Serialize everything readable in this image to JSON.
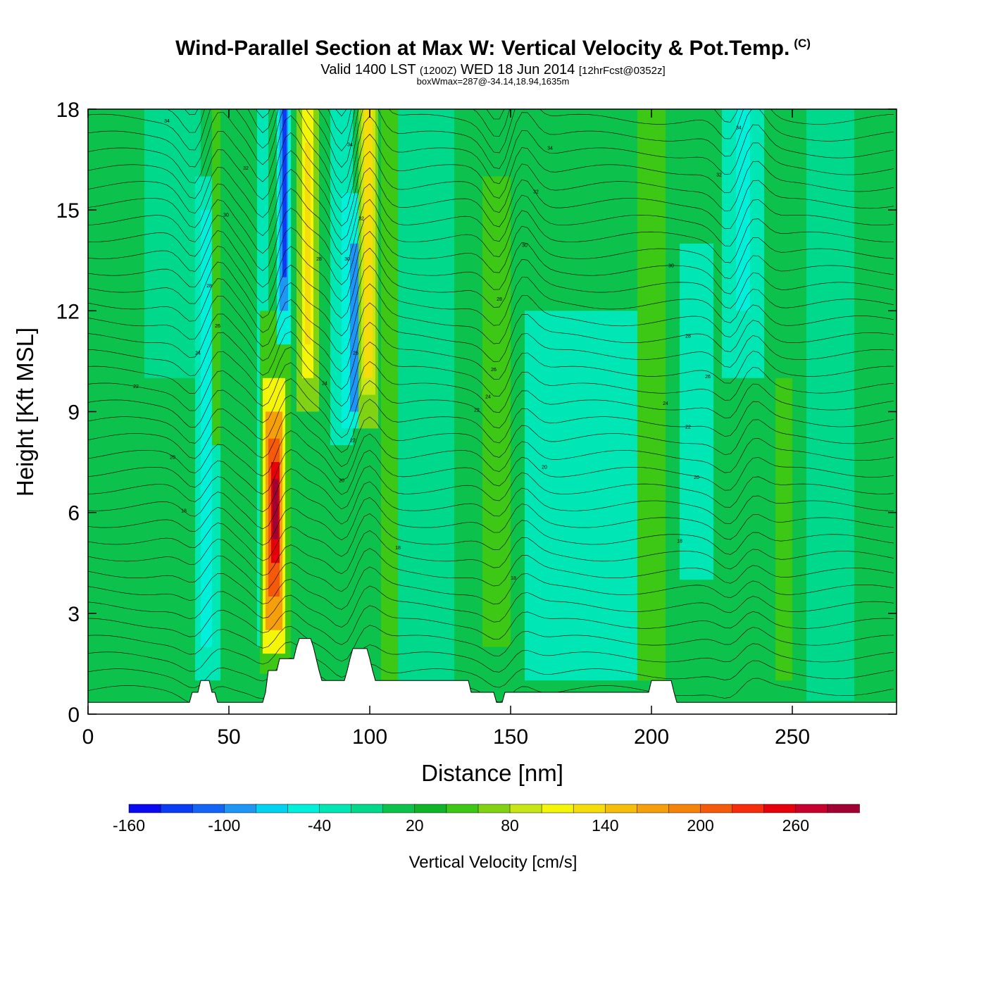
{
  "header": {
    "title": "Wind-Parallel Section at Max W: Vertical Velocity & Pot.Temp.",
    "copyright_mark": "(C)",
    "valid_prefix": "Valid 1400 LST",
    "valid_utc": "(1200Z)",
    "valid_date": "WED 18 Jun 2014",
    "forecast_info": "[12hrFcst@0352z]",
    "box_max": "boxWmax=287@-34.14,18.94,1635m"
  },
  "colors": {
    "background_green": "#0cc24c",
    "frame": "#000000",
    "terrain": "#ffffff",
    "contour": "#000000"
  },
  "chart_data": {
    "type": "heatmap",
    "title": "Wind-Parallel Section at Max W: Vertical Velocity & Pot.Temp.",
    "xlabel": "Distance [nm]",
    "ylabel": "Height [Kft MSL]",
    "xlim": [
      0,
      287
    ],
    "ylim": [
      0,
      18
    ],
    "x_ticks": [
      0,
      50,
      100,
      150,
      200,
      250
    ],
    "y_ticks": [
      0,
      3,
      6,
      9,
      12,
      15,
      18
    ],
    "colorbar": {
      "title": "Vertical Velocity [cm/s]",
      "min": -160,
      "max": 300,
      "step": 20,
      "tick_labels": [
        "-160",
        "-100",
        "-40",
        "20",
        "80",
        "140",
        "200",
        "260"
      ],
      "tick_values": [
        -160,
        -100,
        -40,
        20,
        80,
        140,
        200,
        260
      ],
      "colors": [
        "#0a0af0",
        "#0a3cf5",
        "#1464f5",
        "#1e96f5",
        "#00d2f0",
        "#00f0dc",
        "#00e6b4",
        "#00d88c",
        "#0cc24c",
        "#10b428",
        "#3cc814",
        "#82d214",
        "#c8e614",
        "#f5f50a",
        "#f5dc0a",
        "#f5be0a",
        "#f5a00a",
        "#f5820a",
        "#f55a0a",
        "#f52d0a",
        "#e6000a",
        "#c8002d",
        "#a00032"
      ]
    },
    "features": [
      {
        "name": "updraft",
        "x": 66,
        "y_range": [
          2,
          9
        ],
        "peak_w": 287,
        "peak_height": 6.2
      },
      {
        "name": "updraft",
        "x": 99,
        "y_range": [
          9,
          18
        ],
        "peak_w": 120
      },
      {
        "name": "updraft",
        "x": 78,
        "y_range": [
          9,
          18
        ],
        "peak_w": 110
      },
      {
        "name": "downdraft",
        "x": 69,
        "y_range": [
          12,
          18
        ],
        "peak_w": -120
      },
      {
        "name": "downdraft",
        "x": 94,
        "y_range": [
          9,
          15
        ],
        "peak_w": -100
      },
      {
        "name": "downdraft",
        "x": 42,
        "y_range": [
          2,
          15
        ],
        "peak_w": -50
      },
      {
        "name": "downdraft",
        "x": 232,
        "y_range": [
          12,
          18
        ],
        "peak_w": -50
      }
    ],
    "terrain_kft": [
      [
        0,
        0.35
      ],
      [
        36,
        0.35
      ],
      [
        37,
        0.65
      ],
      [
        39,
        0.65
      ],
      [
        40,
        1.0
      ],
      [
        43,
        1.0
      ],
      [
        44,
        0.65
      ],
      [
        45,
        0.65
      ],
      [
        46,
        0.35
      ],
      [
        62,
        0.35
      ],
      [
        63,
        0.65
      ],
      [
        64,
        1.3
      ],
      [
        67,
        1.3
      ],
      [
        68,
        1.65
      ],
      [
        73,
        1.65
      ],
      [
        74,
        2.0
      ],
      [
        75,
        2.25
      ],
      [
        79,
        2.25
      ],
      [
        80,
        2.0
      ],
      [
        81,
        1.65
      ],
      [
        82,
        1.3
      ],
      [
        83,
        1.0
      ],
      [
        91,
        1.0
      ],
      [
        92,
        1.3
      ],
      [
        93,
        1.65
      ],
      [
        94,
        1.95
      ],
      [
        99,
        1.95
      ],
      [
        100,
        1.65
      ],
      [
        101,
        1.3
      ],
      [
        102,
        1.0
      ],
      [
        135,
        1.0
      ],
      [
        136,
        0.65
      ],
      [
        144,
        0.65
      ],
      [
        145,
        0.35
      ],
      [
        147,
        0.35
      ],
      [
        148,
        0.65
      ],
      [
        199,
        0.65
      ],
      [
        200,
        1.0
      ],
      [
        207,
        1.0
      ],
      [
        208,
        0.65
      ],
      [
        209,
        0.35
      ],
      [
        287,
        0.35
      ]
    ],
    "theta_contour_labels": [
      {
        "text": "34",
        "x": 28,
        "y": 17.6
      },
      {
        "text": "32",
        "x": 56,
        "y": 16.2
      },
      {
        "text": "30",
        "x": 49,
        "y": 14.8
      },
      {
        "text": "28",
        "x": 43,
        "y": 12.7
      },
      {
        "text": "26",
        "x": 46,
        "y": 11.5
      },
      {
        "text": "24",
        "x": 39,
        "y": 10.7
      },
      {
        "text": "22",
        "x": 17,
        "y": 9.7
      },
      {
        "text": "20",
        "x": 30,
        "y": 7.6
      },
      {
        "text": "18",
        "x": 34,
        "y": 6.0
      },
      {
        "text": "34",
        "x": 93,
        "y": 16.9
      },
      {
        "text": "32",
        "x": 97,
        "y": 14.7
      },
      {
        "text": "30",
        "x": 92,
        "y": 13.5
      },
      {
        "text": "28",
        "x": 82,
        "y": 13.5
      },
      {
        "text": "26",
        "x": 95,
        "y": 10.7
      },
      {
        "text": "24",
        "x": 84,
        "y": 9.8
      },
      {
        "text": "22",
        "x": 94,
        "y": 8.1
      },
      {
        "text": "20",
        "x": 90,
        "y": 6.9
      },
      {
        "text": "18",
        "x": 110,
        "y": 4.9
      },
      {
        "text": "34",
        "x": 164,
        "y": 16.8
      },
      {
        "text": "32",
        "x": 159,
        "y": 15.5
      },
      {
        "text": "30",
        "x": 155,
        "y": 13.9
      },
      {
        "text": "28",
        "x": 146,
        "y": 12.3
      },
      {
        "text": "26",
        "x": 144,
        "y": 10.2
      },
      {
        "text": "24",
        "x": 142,
        "y": 9.4
      },
      {
        "text": "22",
        "x": 138,
        "y": 9.0
      },
      {
        "text": "20",
        "x": 162,
        "y": 7.3
      },
      {
        "text": "18",
        "x": 151,
        "y": 4.0
      },
      {
        "text": "34",
        "x": 231,
        "y": 17.4
      },
      {
        "text": "32",
        "x": 224,
        "y": 16.0
      },
      {
        "text": "30",
        "x": 207,
        "y": 13.3
      },
      {
        "text": "28",
        "x": 213,
        "y": 11.2
      },
      {
        "text": "26",
        "x": 220,
        "y": 10.0
      },
      {
        "text": "24",
        "x": 205,
        "y": 9.2
      },
      {
        "text": "22",
        "x": 213,
        "y": 8.5
      },
      {
        "text": "20",
        "x": 216,
        "y": 7.0
      },
      {
        "text": "18",
        "x": 210,
        "y": 5.1
      }
    ]
  }
}
